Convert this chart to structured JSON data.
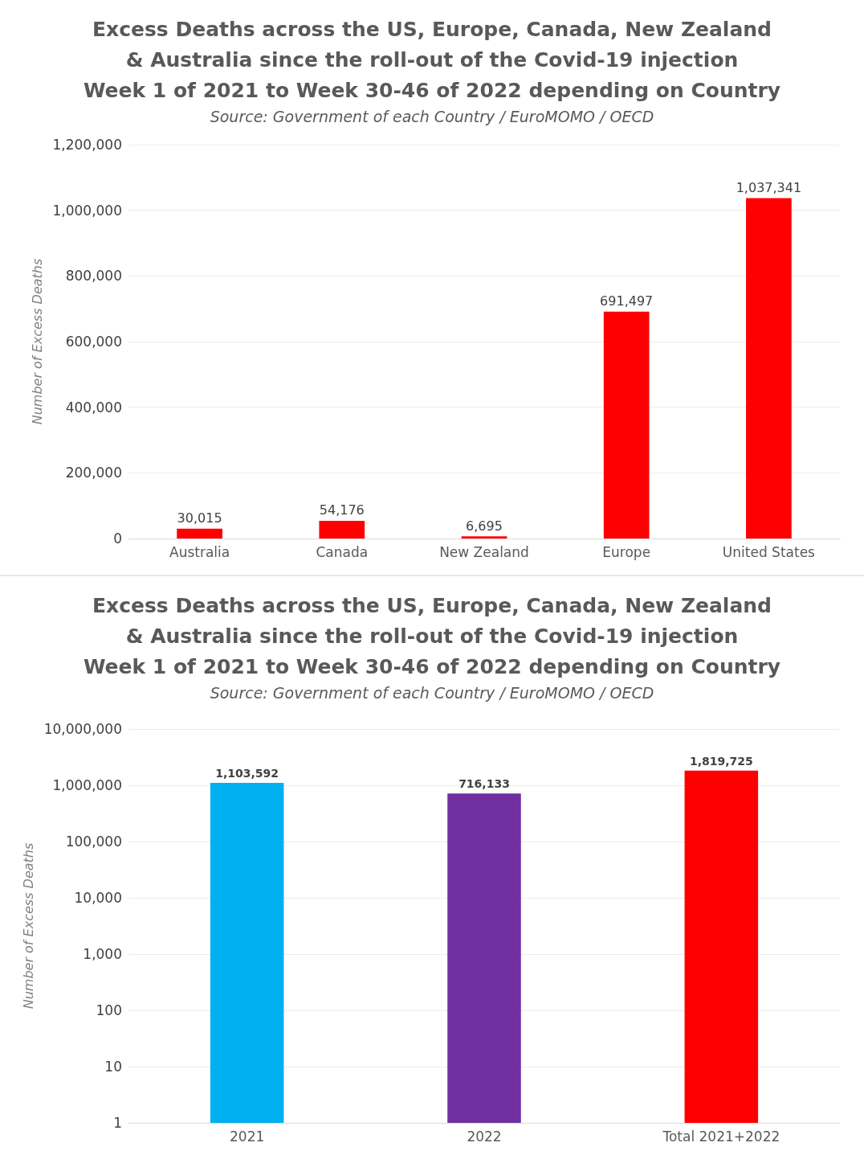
{
  "chart_data": [
    {
      "type": "bar",
      "title": "Excess Deaths across the US, Europe, Canada, New Zealand\n& Australia since the roll-out of the Covid-19 injection\nWeek 1 of 2021 to Week 30-46 of 2022 depending on Country",
      "subtitle": "Source: Government of each Country / EuroMOMO / OECD",
      "ylabel": "Number of Excess Deaths",
      "categories": [
        "Australia",
        "Canada",
        "New Zealand",
        "Europe",
        "United States"
      ],
      "series": [
        {
          "color": "#ff0000",
          "values": [
            30015,
            54176,
            6695,
            691497,
            1037341
          ],
          "value_labels": [
            "30,015",
            "54,176",
            "6,695",
            "691,497",
            "1,037,341"
          ]
        }
      ],
      "ylim": [
        0,
        1200000
      ],
      "yticks": [
        0,
        {
          "value": 200000,
          "label": "200,000"
        },
        {
          "value": 400000,
          "label": "400,000"
        },
        {
          "value": 600000,
          "label": "600,000"
        },
        {
          "value": 800000,
          "label": "800,000"
        },
        {
          "value": 1000000,
          "label": "1,000,000"
        },
        {
          "value": 1200000,
          "label": "1,200,000"
        }
      ],
      "grid": "y"
    },
    {
      "type": "bar",
      "title": "Excess Deaths across the US, Europe, Canada, New Zealand\n& Australia since the roll-out of the Covid-19 injection\nWeek 1 of 2021 to Week 30-46 of 2022 depending on Country",
      "subtitle": "Source: Government of each Country / EuroMOMO / OECD",
      "ylabel": "Number of Excess Deaths",
      "categories": [
        "2021",
        "2022",
        "Total 2021+2022"
      ],
      "series": [
        {
          "colors": [
            "#00b0f0",
            "#7030a0",
            "#ff0000"
          ],
          "values": [
            1103592,
            716133,
            1819725
          ],
          "value_labels": [
            "1,103,592",
            "716,133",
            "1,819,725"
          ]
        }
      ],
      "log": "y",
      "ylim": [
        1,
        10000000
      ],
      "yticks": [
        1,
        10,
        100,
        {
          "value": 1000,
          "label": "1,000"
        },
        {
          "value": 10000,
          "label": "10,000"
        },
        {
          "value": 100000,
          "label": "100,000"
        },
        {
          "value": 1000000,
          "label": "1,000,000"
        },
        {
          "value": 10000000,
          "label": "10,000,000"
        }
      ],
      "grid": "y"
    }
  ]
}
